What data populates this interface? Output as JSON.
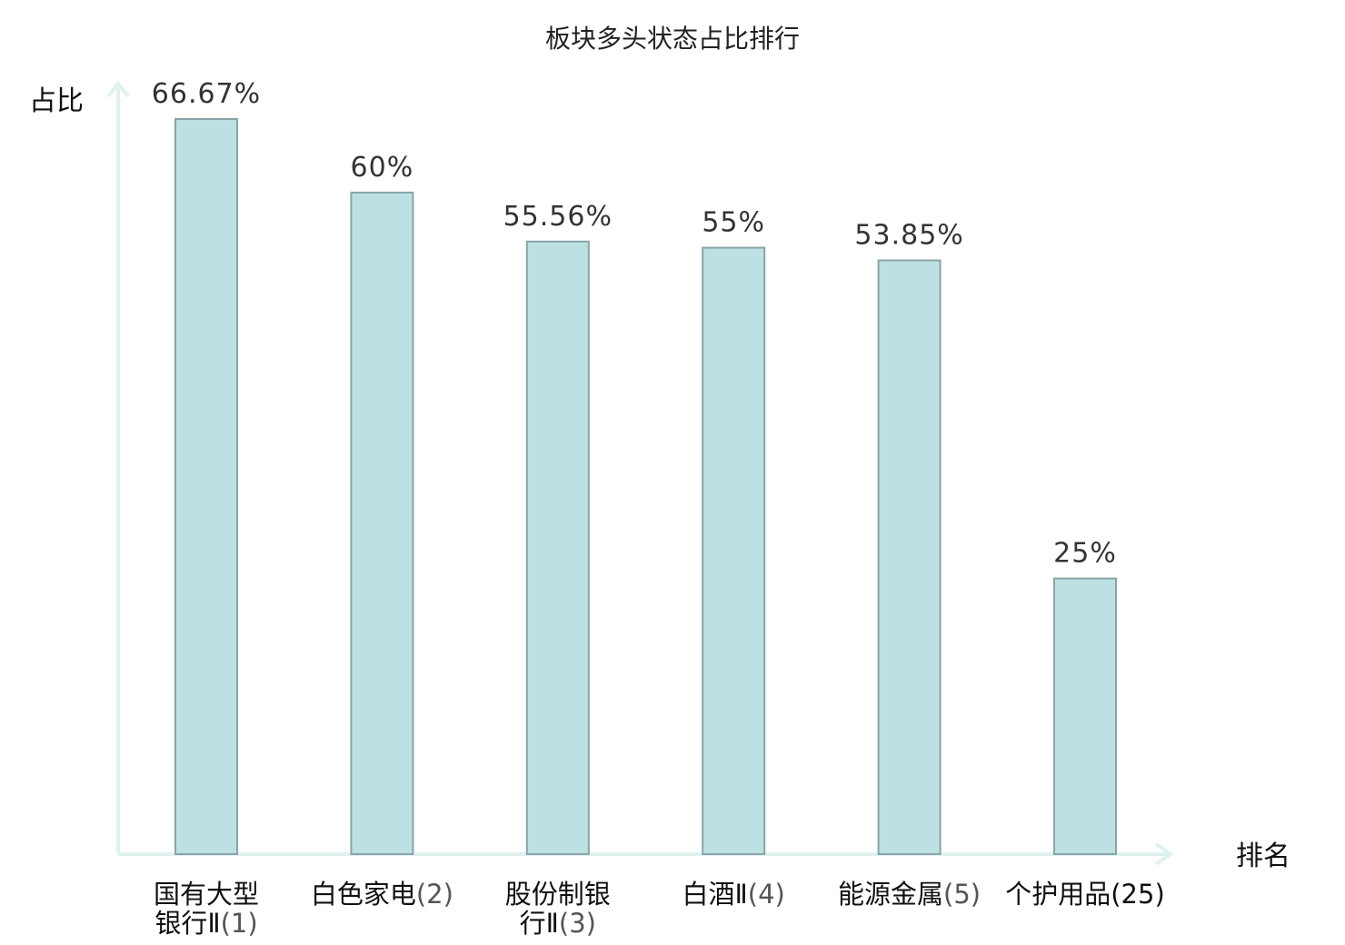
{
  "chart_data": {
    "type": "bar",
    "title": "板块多头状态占比排行",
    "ylabel": "占比",
    "xlabel": "排名",
    "ylim": [
      0,
      70
    ],
    "grid": false,
    "categories": [
      {
        "name_lines": [
          "国有大型",
          "银行Ⅱ"
        ],
        "rank": "(1)",
        "highlight": false
      },
      {
        "name_lines": [
          "白色家电"
        ],
        "rank": "(2)",
        "highlight": false
      },
      {
        "name_lines": [
          "股份制银",
          "行Ⅱ"
        ],
        "rank": "(3)",
        "highlight": false
      },
      {
        "name_lines": [
          "白酒Ⅱ"
        ],
        "rank": "(4)",
        "highlight": false
      },
      {
        "name_lines": [
          "能源金属"
        ],
        "rank": "(5)",
        "highlight": false
      },
      {
        "name_lines": [
          "个护用品"
        ],
        "rank": "(25)",
        "highlight": true
      }
    ],
    "values": [
      66.67,
      60,
      55.56,
      55,
      53.85,
      25
    ],
    "value_labels": [
      "66.67%",
      "60%",
      "55.56%",
      "55%",
      "53.85%",
      "25%"
    ],
    "colors": {
      "bar_fill": "#bde0e3",
      "bar_stroke": "#8aa4a8",
      "axis": "#e0f2ef",
      "highlight_text": "#e0201b"
    }
  }
}
